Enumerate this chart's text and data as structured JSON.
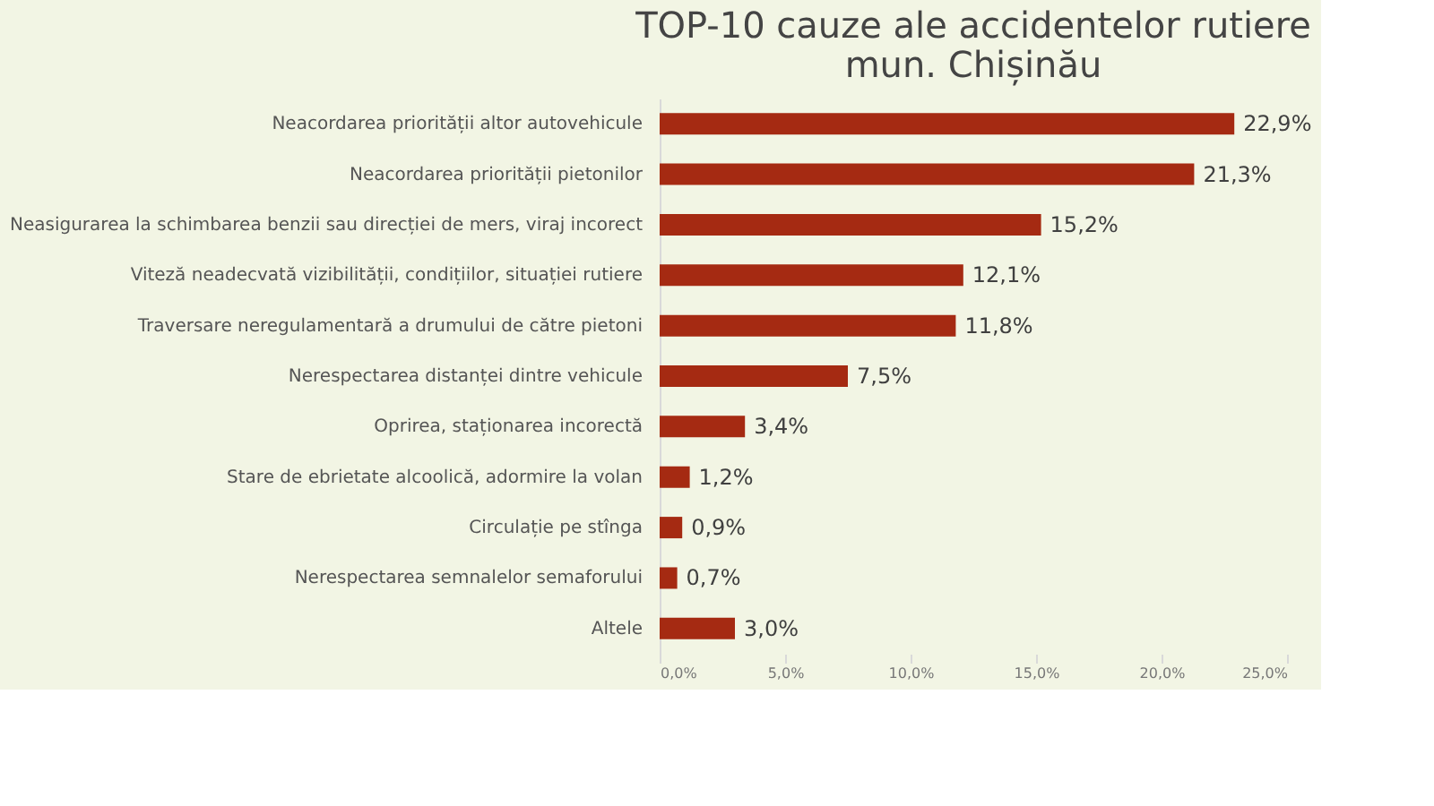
{
  "chart_data": {
    "type": "bar",
    "orientation": "horizontal",
    "title": "TOP-10 cauze ale accidentelor rutiere\nmun. Chișinău",
    "categories": [
      "Neacordarea priorității altor autovehicule",
      "Neacordarea priorității pietonilor",
      "Neasigurarea la schimbarea benzii sau direcției de mers, viraj incorect",
      "Viteză neadecvată vizibilității, condițiilor, situației rutiere",
      "Traversare neregulamentară a drumului de către pietoni",
      "Nerespectarea distanței dintre vehicule",
      "Oprirea, staționarea incorectă",
      "Stare de ebrietate alcoolică, adormire la volan",
      "Circulație pe stînga",
      "Nerespectarea semnalelor semaforului",
      "Altele"
    ],
    "values": [
      22.9,
      21.3,
      15.2,
      12.1,
      11.8,
      7.5,
      3.4,
      1.2,
      0.9,
      0.7,
      3.0
    ],
    "value_labels": [
      "22,9%",
      "21,3%",
      "15,2%",
      "12,1%",
      "11,8%",
      "7,5%",
      "3,4%",
      "1,2%",
      "0,9%",
      "0,7%",
      "3,0%"
    ],
    "color": "#a52a12",
    "xlim": [
      0,
      25
    ],
    "xticks": [
      {
        "value": 0,
        "label": "0,0%"
      },
      {
        "value": 5,
        "label": "5,0%"
      },
      {
        "value": 10,
        "label": "10,0%"
      },
      {
        "value": 15,
        "label": "15,0%"
      },
      {
        "value": 20,
        "label": "20,0%"
      },
      {
        "value": 25,
        "label": "25,0%"
      }
    ],
    "grid": false
  }
}
